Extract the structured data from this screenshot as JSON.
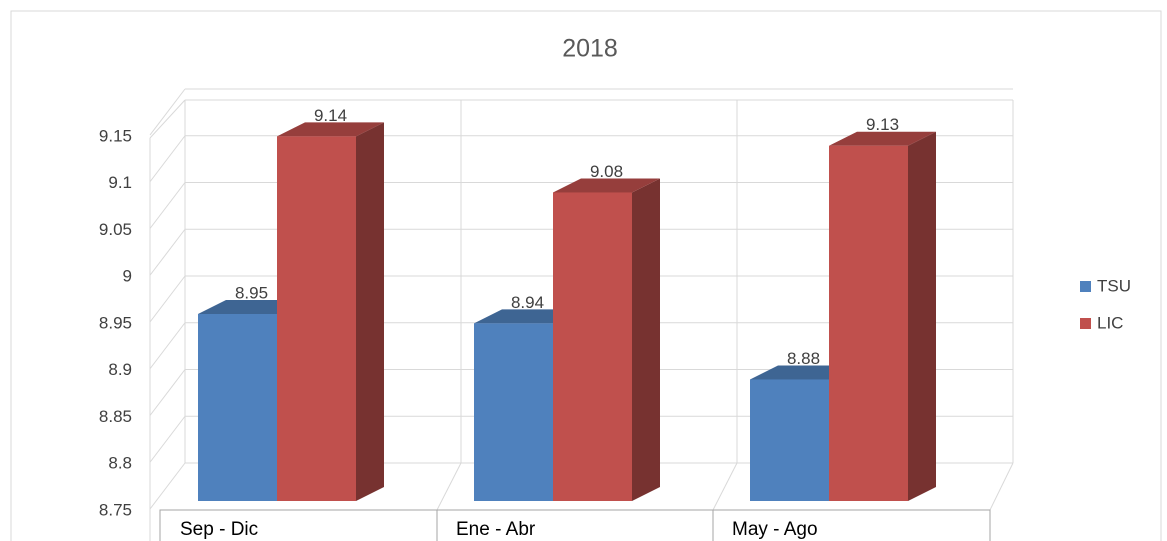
{
  "chart_data": {
    "type": "bar3d",
    "title": "2018",
    "categories": [
      "Sep - Dic",
      "Ene - Abr",
      "May - Ago"
    ],
    "series": [
      {
        "name": "TSU",
        "color": "#4f81bd",
        "values": [
          8.95,
          8.94,
          8.88
        ]
      },
      {
        "name": "LIC",
        "color": "#c0504d",
        "values": [
          9.14,
          9.08,
          9.13
        ]
      }
    ],
    "ylim": [
      8.75,
      9.15
    ],
    "yticks": [
      8.75,
      8.8,
      8.85,
      8.9,
      8.95,
      9,
      9.05,
      9.1,
      9.15
    ],
    "grid": true,
    "legend": "right"
  }
}
